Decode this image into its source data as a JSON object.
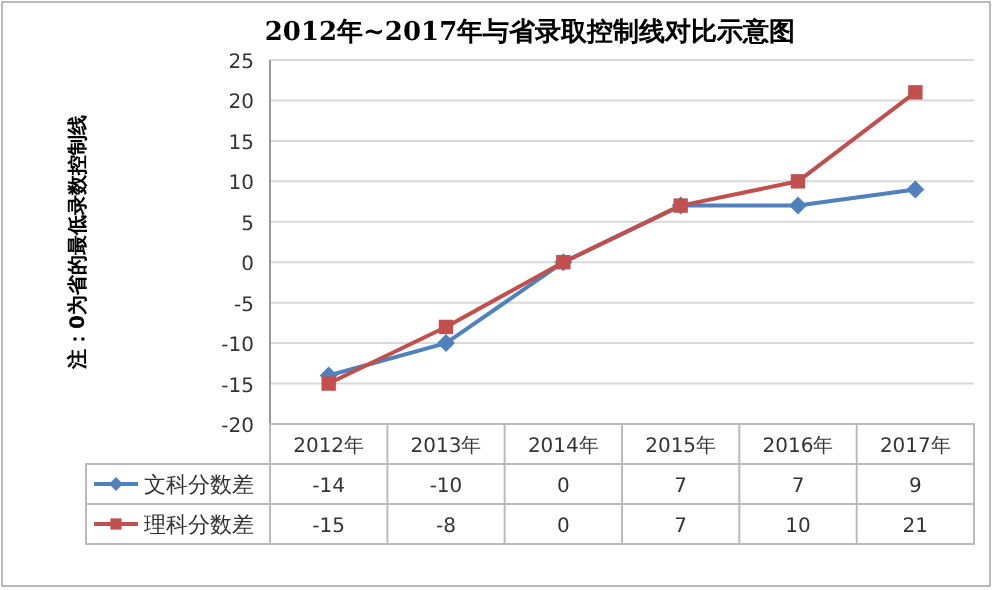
{
  "chart_data": {
    "type": "line",
    "title": "2012年~2017年与省录取控制线对比示意图",
    "annotations": [
      "注：0为省的最低录数控制线"
    ],
    "categories": [
      "2012年",
      "2013年",
      "2014年",
      "2015年",
      "2016年",
      "2017年"
    ],
    "series": [
      {
        "name": "文科分数差",
        "color": "#4f81bd",
        "marker": "diamond",
        "values": [
          -14,
          -10,
          0,
          7,
          7,
          9
        ]
      },
      {
        "name": "理科分数差",
        "color": "#c0504d",
        "marker": "square",
        "values": [
          -15,
          -8,
          0,
          7,
          10,
          21
        ]
      }
    ],
    "ylim": [
      -20,
      25
    ],
    "yticks": [
      -20,
      -15,
      -10,
      -5,
      0,
      5,
      10,
      15,
      20,
      25
    ],
    "grid": "y",
    "legend": "bottom left",
    "data_labels": true
  }
}
